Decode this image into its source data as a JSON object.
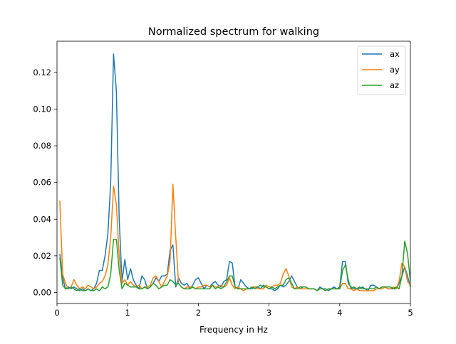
{
  "chart_data": {
    "type": "line",
    "title": "Normalized spectrum for walking",
    "xlabel": "Frequency in Hz",
    "ylabel": "",
    "xlim": [
      0,
      5
    ],
    "ylim": [
      -0.006,
      0.137
    ],
    "xticks": [
      0,
      1,
      2,
      3,
      4,
      5
    ],
    "xtick_labels": [
      "0",
      "1",
      "2",
      "3",
      "4",
      "5"
    ],
    "yticks": [
      0,
      0.02,
      0.04,
      0.06,
      0.08,
      0.1,
      0.12
    ],
    "ytick_labels": [
      "0.00",
      "0.02",
      "0.04",
      "0.06",
      "0.08",
      "0.10",
      "0.12"
    ],
    "legend_position": "top-right",
    "grid": false,
    "series": [
      {
        "name": "ax",
        "color": "#1f77b4",
        "x": [
          0.04,
          0.08,
          0.12,
          0.16,
          0.2,
          0.24,
          0.28,
          0.32,
          0.36,
          0.4,
          0.44,
          0.48,
          0.52,
          0.56,
          0.6,
          0.64,
          0.68,
          0.72,
          0.76,
          0.8,
          0.84,
          0.88,
          0.92,
          0.96,
          1.0,
          1.04,
          1.08,
          1.12,
          1.16,
          1.2,
          1.24,
          1.28,
          1.32,
          1.36,
          1.4,
          1.44,
          1.48,
          1.52,
          1.56,
          1.6,
          1.64,
          1.68,
          1.72,
          1.76,
          1.8,
          1.84,
          1.88,
          1.92,
          1.96,
          2.0,
          2.04,
          2.08,
          2.12,
          2.16,
          2.2,
          2.24,
          2.28,
          2.32,
          2.36,
          2.4,
          2.44,
          2.48,
          2.52,
          2.56,
          2.6,
          2.64,
          2.68,
          2.72,
          2.76,
          2.8,
          2.84,
          2.88,
          2.92,
          2.96,
          3.0,
          3.04,
          3.08,
          3.12,
          3.16,
          3.2,
          3.24,
          3.28,
          3.32,
          3.36,
          3.4,
          3.44,
          3.48,
          3.52,
          3.56,
          3.6,
          3.64,
          3.68,
          3.72,
          3.76,
          3.8,
          3.84,
          3.88,
          3.92,
          3.96,
          4.0,
          4.04,
          4.08,
          4.12,
          4.16,
          4.2,
          4.24,
          4.28,
          4.32,
          4.36,
          4.4,
          4.44,
          4.48,
          4.52,
          4.56,
          4.6,
          4.64,
          4.68,
          4.72,
          4.76,
          4.8,
          4.84,
          4.88,
          4.92,
          4.96,
          5.0
        ],
        "y": [
          0.021,
          0.008,
          0.002,
          0.003,
          0.002,
          0.003,
          0.002,
          0.001,
          0.002,
          0.001,
          0.002,
          0.001,
          0.002,
          0.005,
          0.012,
          0.012,
          0.02,
          0.032,
          0.06,
          0.13,
          0.11,
          0.04,
          0.006,
          0.018,
          0.007,
          0.013,
          0.007,
          0.004,
          0.002,
          0.009,
          0.007,
          0.002,
          0.003,
          0.005,
          0.008,
          0.006,
          0.009,
          0.009,
          0.01,
          0.023,
          0.026,
          0.003,
          0.008,
          0.005,
          0.004,
          0.005,
          0.002,
          0.004,
          0.007,
          0.008,
          0.005,
          0.002,
          0.004,
          0.003,
          0.005,
          0.006,
          0.004,
          0.003,
          0.006,
          0.007,
          0.017,
          0.016,
          0.003,
          0.002,
          0.007,
          0.005,
          0.003,
          0.002,
          0.002,
          0.003,
          0.003,
          0.002,
          0.004,
          0.003,
          0.002,
          0.002,
          0.001,
          0.002,
          0.004,
          0.003,
          0.004,
          0.006,
          0.009,
          0.006,
          0.003,
          0.002,
          0.003,
          0.003,
          0.002,
          0.002,
          0.002,
          0.001,
          0.003,
          0.002,
          0.002,
          0.001,
          0.002,
          0.003,
          0.002,
          0.003,
          0.017,
          0.017,
          0.005,
          0.003,
          0.002,
          0.002,
          0.002,
          0.003,
          0.002,
          0.001,
          0.004,
          0.004,
          0.003,
          0.002,
          0.003,
          0.003,
          0.002,
          0.002,
          0.002,
          0.002,
          0.005,
          0.009,
          0.014,
          0.009,
          0.003
        ]
      },
      {
        "name": "ay",
        "color": "#ff7f0e",
        "x": [
          0.04,
          0.08,
          0.12,
          0.16,
          0.2,
          0.24,
          0.28,
          0.32,
          0.36,
          0.4,
          0.44,
          0.48,
          0.52,
          0.56,
          0.6,
          0.64,
          0.68,
          0.72,
          0.76,
          0.8,
          0.84,
          0.88,
          0.92,
          0.96,
          1.0,
          1.04,
          1.08,
          1.12,
          1.16,
          1.2,
          1.24,
          1.28,
          1.32,
          1.36,
          1.4,
          1.44,
          1.48,
          1.52,
          1.56,
          1.6,
          1.64,
          1.68,
          1.72,
          1.76,
          1.8,
          1.84,
          1.88,
          1.92,
          1.96,
          2.0,
          2.04,
          2.08,
          2.12,
          2.16,
          2.2,
          2.24,
          2.28,
          2.32,
          2.36,
          2.4,
          2.44,
          2.48,
          2.52,
          2.56,
          2.6,
          2.64,
          2.68,
          2.72,
          2.76,
          2.8,
          2.84,
          2.88,
          2.92,
          2.96,
          3.0,
          3.04,
          3.08,
          3.12,
          3.16,
          3.2,
          3.24,
          3.28,
          3.32,
          3.36,
          3.4,
          3.44,
          3.48,
          3.52,
          3.56,
          3.6,
          3.64,
          3.68,
          3.72,
          3.76,
          3.8,
          3.84,
          3.88,
          3.92,
          3.96,
          4.0,
          4.04,
          4.08,
          4.12,
          4.16,
          4.2,
          4.24,
          4.28,
          4.32,
          4.36,
          4.4,
          4.44,
          4.48,
          4.52,
          4.56,
          4.6,
          4.64,
          4.68,
          4.72,
          4.76,
          4.8,
          4.84,
          4.88,
          4.92,
          4.96,
          5.0
        ],
        "y": [
          0.05,
          0.01,
          0.005,
          0.002,
          0.003,
          0.007,
          0.004,
          0.002,
          0.003,
          0.002,
          0.004,
          0.003,
          0.002,
          0.003,
          0.005,
          0.006,
          0.009,
          0.015,
          0.03,
          0.058,
          0.048,
          0.02,
          0.005,
          0.007,
          0.004,
          0.006,
          0.004,
          0.003,
          0.004,
          0.002,
          0.003,
          0.003,
          0.004,
          0.008,
          0.009,
          0.006,
          0.003,
          0.006,
          0.009,
          0.017,
          0.059,
          0.03,
          0.005,
          0.003,
          0.002,
          0.003,
          0.003,
          0.003,
          0.002,
          0.003,
          0.003,
          0.004,
          0.004,
          0.003,
          0.004,
          0.003,
          0.003,
          0.004,
          0.003,
          0.004,
          0.008,
          0.004,
          0.002,
          0.003,
          0.002,
          0.001,
          0.002,
          0.002,
          0.003,
          0.003,
          0.002,
          0.002,
          0.002,
          0.004,
          0.003,
          0.003,
          0.004,
          0.004,
          0.005,
          0.01,
          0.013,
          0.009,
          0.003,
          0.002,
          0.003,
          0.002,
          0.002,
          0.002,
          0.002,
          0.002,
          0.002,
          0.001,
          0.002,
          0.002,
          0.001,
          0.002,
          0.002,
          0.002,
          0.002,
          0.002,
          0.005,
          0.005,
          0.002,
          0.002,
          0.001,
          0.002,
          0.001,
          0.001,
          0.001,
          0.001,
          0.001,
          0.001,
          0.002,
          0.002,
          0.002,
          0.003,
          0.002,
          0.002,
          0.003,
          0.002,
          0.006,
          0.016,
          0.014,
          0.006,
          0.004
        ]
      },
      {
        "name": "az",
        "color": "#2ca02c",
        "x": [
          0.04,
          0.08,
          0.12,
          0.16,
          0.2,
          0.24,
          0.28,
          0.32,
          0.36,
          0.4,
          0.44,
          0.48,
          0.52,
          0.56,
          0.6,
          0.64,
          0.68,
          0.72,
          0.76,
          0.8,
          0.84,
          0.88,
          0.92,
          0.96,
          1.0,
          1.04,
          1.08,
          1.12,
          1.16,
          1.2,
          1.24,
          1.28,
          1.32,
          1.36,
          1.4,
          1.44,
          1.48,
          1.52,
          1.56,
          1.6,
          1.64,
          1.68,
          1.72,
          1.76,
          1.8,
          1.84,
          1.88,
          1.92,
          1.96,
          2.0,
          2.04,
          2.08,
          2.12,
          2.16,
          2.2,
          2.24,
          2.28,
          2.32,
          2.36,
          2.4,
          2.44,
          2.48,
          2.52,
          2.56,
          2.6,
          2.64,
          2.68,
          2.72,
          2.76,
          2.8,
          2.84,
          2.88,
          2.92,
          2.96,
          3.0,
          3.04,
          3.08,
          3.12,
          3.16,
          3.2,
          3.24,
          3.28,
          3.32,
          3.36,
          3.4,
          3.44,
          3.48,
          3.52,
          3.56,
          3.6,
          3.64,
          3.68,
          3.72,
          3.76,
          3.8,
          3.84,
          3.88,
          3.92,
          3.96,
          4.0,
          4.04,
          4.08,
          4.12,
          4.16,
          4.2,
          4.24,
          4.28,
          4.32,
          4.36,
          4.4,
          4.44,
          4.48,
          4.52,
          4.56,
          4.6,
          4.64,
          4.68,
          4.72,
          4.76,
          4.8,
          4.84,
          4.88,
          4.92,
          4.96,
          5.0
        ],
        "y": [
          0.019,
          0.004,
          0.002,
          0.002,
          0.003,
          0.002,
          0.001,
          0.002,
          0.001,
          0.001,
          0.002,
          0.001,
          0.001,
          0.002,
          0.001,
          0.003,
          0.002,
          0.003,
          0.01,
          0.029,
          0.029,
          0.012,
          0.002,
          0.005,
          0.004,
          0.003,
          0.003,
          0.003,
          0.002,
          0.002,
          0.003,
          0.002,
          0.003,
          0.005,
          0.004,
          0.002,
          0.003,
          0.004,
          0.004,
          0.007,
          0.006,
          0.004,
          0.005,
          0.003,
          0.002,
          0.002,
          0.002,
          0.003,
          0.002,
          0.002,
          0.002,
          0.002,
          0.002,
          0.002,
          0.004,
          0.002,
          0.003,
          0.002,
          0.003,
          0.006,
          0.009,
          0.009,
          0.003,
          0.002,
          0.002,
          0.002,
          0.002,
          0.002,
          0.003,
          0.002,
          0.003,
          0.004,
          0.003,
          0.003,
          0.002,
          0.003,
          0.002,
          0.003,
          0.004,
          0.004,
          0.007,
          0.008,
          0.005,
          0.002,
          0.002,
          0.003,
          0.003,
          0.003,
          0.002,
          0.002,
          0.002,
          0.001,
          0.002,
          0.002,
          0.001,
          0.002,
          0.002,
          0.002,
          0.002,
          0.002,
          0.012,
          0.015,
          0.007,
          0.002,
          0.003,
          0.002,
          0.003,
          0.002,
          0.002,
          0.002,
          0.002,
          0.002,
          0.003,
          0.002,
          0.003,
          0.003,
          0.003,
          0.003,
          0.002,
          0.003,
          0.002,
          0.009,
          0.028,
          0.021,
          0.006
        ]
      }
    ]
  }
}
